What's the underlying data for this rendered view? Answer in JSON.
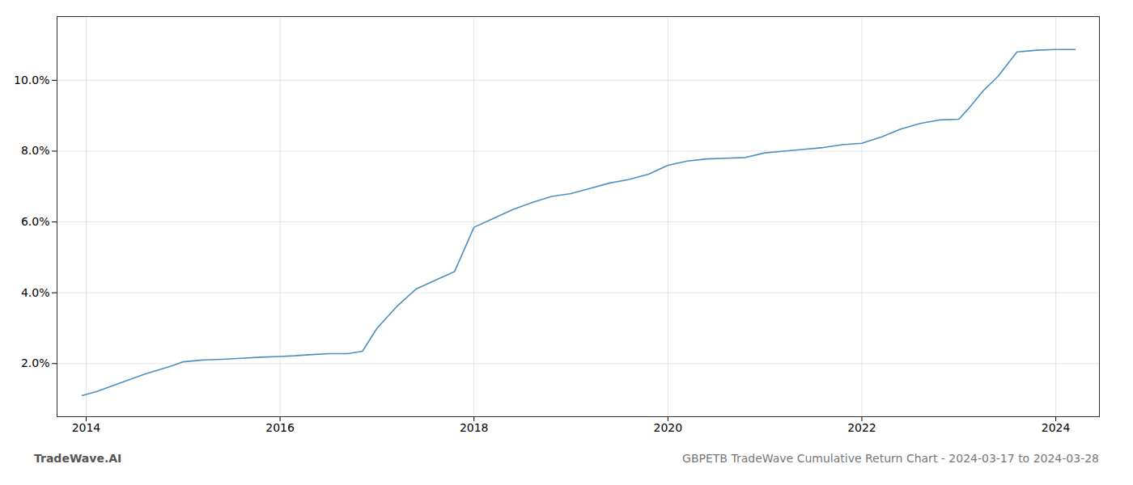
{
  "chart_data": {
    "type": "line",
    "title": "GBPETB TradeWave Cumulative Return Chart - 2024-03-17 to 2024-03-28",
    "annotations": [
      "TradeWave.AI"
    ],
    "color": "#4a90c4",
    "x": [
      2013.96,
      2014.1,
      2014.3,
      2014.6,
      2014.9,
      2015.0,
      2015.2,
      2015.4,
      2015.6,
      2015.8,
      2016.0,
      2016.15,
      2016.3,
      2016.5,
      2016.7,
      2016.85,
      2017.0,
      2017.2,
      2017.4,
      2017.6,
      2017.8,
      2018.0,
      2018.2,
      2018.4,
      2018.6,
      2018.8,
      2019.0,
      2019.2,
      2019.4,
      2019.6,
      2019.8,
      2020.0,
      2020.2,
      2020.4,
      2020.6,
      2020.8,
      2021.0,
      2021.2,
      2021.4,
      2021.6,
      2021.8,
      2022.0,
      2022.2,
      2022.4,
      2022.6,
      2022.8,
      2023.0,
      2023.1,
      2023.25,
      2023.4,
      2023.6,
      2023.8,
      2024.0,
      2024.2
    ],
    "values": [
      1.1,
      1.2,
      1.4,
      1.7,
      1.95,
      2.05,
      2.1,
      2.12,
      2.15,
      2.18,
      2.2,
      2.22,
      2.25,
      2.28,
      2.28,
      2.35,
      3.0,
      3.6,
      4.1,
      4.35,
      4.6,
      5.85,
      6.1,
      6.35,
      6.55,
      6.72,
      6.8,
      6.95,
      7.1,
      7.2,
      7.35,
      7.6,
      7.72,
      7.78,
      7.8,
      7.82,
      7.95,
      8.0,
      8.05,
      8.1,
      8.18,
      8.22,
      8.4,
      8.62,
      8.78,
      8.88,
      8.9,
      9.2,
      9.7,
      10.1,
      10.8,
      10.85,
      10.87,
      10.87
    ],
    "xlim": [
      2013.7,
      2024.45
    ],
    "ylim": [
      0.5,
      11.8
    ],
    "xticks": [
      2014,
      2016,
      2018,
      2020,
      2022,
      2024
    ],
    "yticks": [
      {
        "value": 2.0,
        "label": "2.0%"
      },
      {
        "value": 4.0,
        "label": "4.0%"
      },
      {
        "value": 6.0,
        "label": "6.0%"
      },
      {
        "value": 8.0,
        "label": "8.0%"
      },
      {
        "value": 10.0,
        "label": "10.0%"
      }
    ],
    "grid": true
  }
}
